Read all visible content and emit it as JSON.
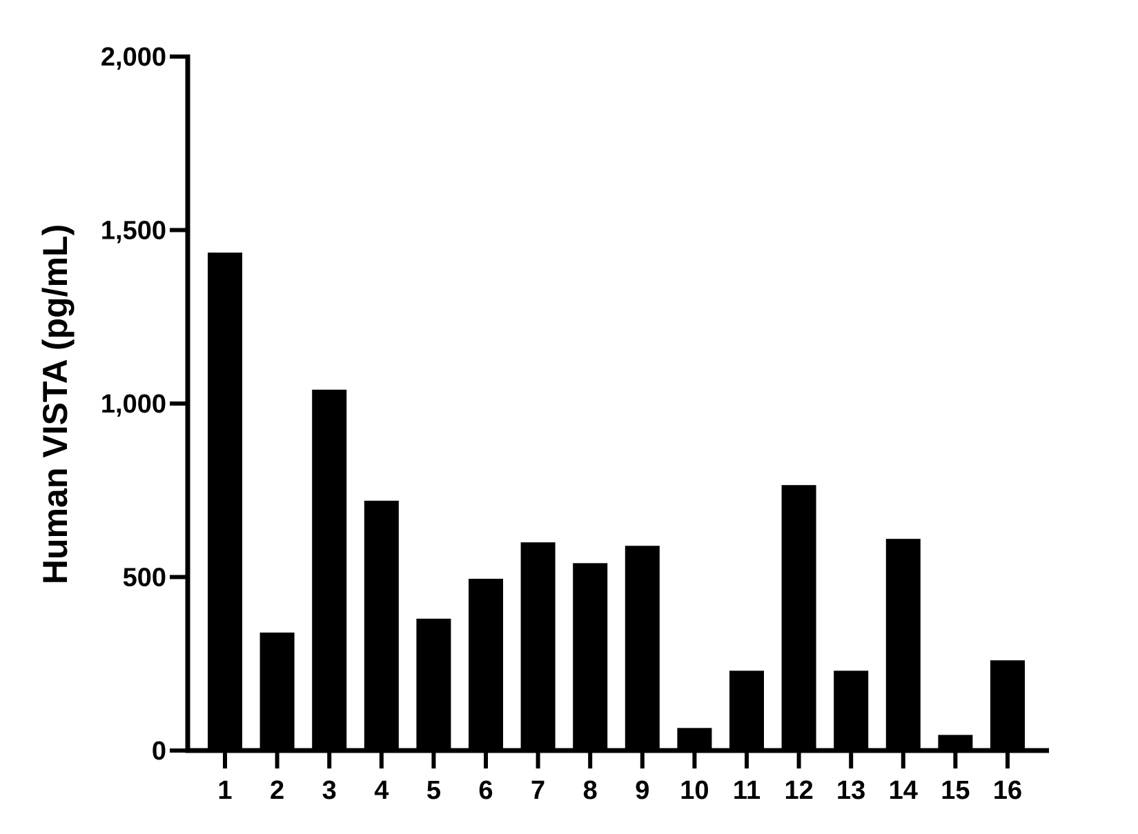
{
  "chart_data": {
    "type": "bar",
    "title": "",
    "xlabel": "",
    "ylabel": "Human VISTA (pg/mL)",
    "categories": [
      "1",
      "2",
      "3",
      "4",
      "5",
      "6",
      "7",
      "8",
      "9",
      "10",
      "11",
      "12",
      "13",
      "14",
      "15",
      "16"
    ],
    "values": [
      1435,
      340,
      1040,
      720,
      380,
      495,
      600,
      540,
      590,
      65,
      230,
      765,
      230,
      610,
      45,
      260
    ],
    "ylim": [
      0,
      2000
    ],
    "yticks": [
      0,
      500,
      1000,
      1500,
      2000
    ],
    "ytick_labels": [
      "0",
      "500",
      "1,000",
      "1,500",
      "2,000"
    ],
    "grid": false,
    "legend": "none",
    "bar_color": "#000000"
  }
}
